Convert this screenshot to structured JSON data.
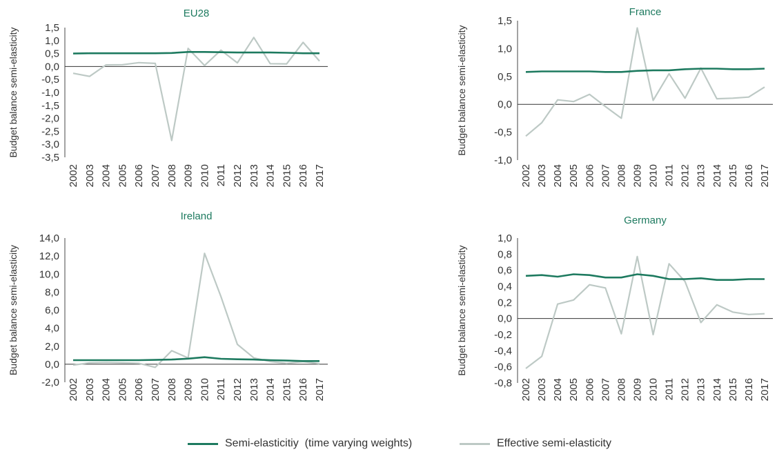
{
  "colors": {
    "series1": "#1d7a5f",
    "series2": "#bdc9c5",
    "title": "#1d7a5f",
    "text": "#333333"
  },
  "legend": {
    "series1": "Semi-elasticitiy  (time varying weights)",
    "series2": "Effective semi-elasticity"
  },
  "chart_data": [
    {
      "type": "line",
      "title": "EU28",
      "ylabel": "Budget balance semi-elasticity",
      "ylim": [
        -3.5,
        1.5
      ],
      "yticks": [
        "1,5",
        "1,0",
        "0,5",
        "0,0",
        "-0,5",
        "-1,0",
        "-1,5",
        "-2,0",
        "-2,5",
        "-3,0",
        "-3,5"
      ],
      "x": [
        "2002",
        "2003",
        "2004",
        "2005",
        "2006",
        "2007",
        "2008",
        "2009",
        "2010",
        "2011",
        "2012",
        "2013",
        "2014",
        "2015",
        "2016",
        "2017"
      ],
      "series": [
        {
          "name": "Semi-elasticitiy  (time varying weights)",
          "values": [
            0.5,
            0.51,
            0.51,
            0.51,
            0.51,
            0.51,
            0.52,
            0.56,
            0.56,
            0.55,
            0.54,
            0.54,
            0.54,
            0.53,
            0.51,
            0.51
          ]
        },
        {
          "name": "Effective semi-elasticity",
          "values": [
            -0.26,
            -0.38,
            0.06,
            0.07,
            0.15,
            0.12,
            -2.85,
            0.7,
            0.04,
            0.63,
            0.14,
            1.12,
            0.11,
            0.1,
            0.93,
            0.21
          ]
        }
      ]
    },
    {
      "type": "line",
      "title": "France",
      "ylabel": "Budget balance semi-elasticity",
      "ylim": [
        -1.0,
        1.5
      ],
      "yticks": [
        "1,5",
        "1,0",
        "0,5",
        "0,0",
        "-0,5",
        "-1,0"
      ],
      "x": [
        "2002",
        "2003",
        "2004",
        "2005",
        "2006",
        "2007",
        "2008",
        "2009",
        "2010",
        "2011",
        "2012",
        "2013",
        "2014",
        "2015",
        "2016",
        "2017"
      ],
      "series": [
        {
          "name": "Semi-elasticitiy  (time varying weights)",
          "values": [
            0.58,
            0.59,
            0.59,
            0.59,
            0.59,
            0.58,
            0.58,
            0.6,
            0.61,
            0.61,
            0.63,
            0.64,
            0.64,
            0.63,
            0.63,
            0.64
          ]
        },
        {
          "name": "Effective semi-elasticity",
          "values": [
            -0.57,
            -0.33,
            0.08,
            0.05,
            0.18,
            -0.04,
            -0.25,
            1.37,
            0.07,
            0.55,
            0.11,
            0.65,
            0.1,
            0.11,
            0.13,
            0.31
          ]
        }
      ]
    },
    {
      "type": "line",
      "title": "Ireland",
      "ylabel": "Budget balance semi-elasticity",
      "ylim": [
        -2.0,
        14.0
      ],
      "yticks": [
        "14,0",
        "12,0",
        "10,0",
        "8,0",
        "6,0",
        "4,0",
        "2,0",
        "0,0",
        "-2,0"
      ],
      "x": [
        "2002",
        "2003",
        "2004",
        "2005",
        "2006",
        "2007",
        "2008",
        "2009",
        "2010",
        "2011",
        "2012",
        "2013",
        "2014",
        "2015",
        "2016",
        "2017"
      ],
      "series": [
        {
          "name": "Semi-elasticitiy  (time varying weights)",
          "values": [
            0.45,
            0.45,
            0.45,
            0.45,
            0.45,
            0.48,
            0.52,
            0.62,
            0.78,
            0.6,
            0.55,
            0.52,
            0.45,
            0.4,
            0.35,
            0.35
          ]
        },
        {
          "name": "Effective semi-elasticity",
          "values": [
            -0.1,
            0.15,
            0.2,
            0.15,
            0.1,
            -0.35,
            1.5,
            0.7,
            12.3,
            7.5,
            2.2,
            0.7,
            0.3,
            0.1,
            0.3,
            0.05
          ]
        }
      ]
    },
    {
      "type": "line",
      "title": "Germany",
      "ylabel": "Budget balance semi-elasticity",
      "ylim": [
        -0.8,
        1.0
      ],
      "yticks": [
        "1,0",
        "0,8",
        "0,6",
        "0,4",
        "0,2",
        "0,0",
        "-0,2",
        "-0,4",
        "-0,6",
        "-0,8"
      ],
      "x": [
        "2002",
        "2003",
        "2004",
        "2005",
        "2006",
        "2007",
        "2008",
        "2009",
        "2010",
        "2011",
        "2012",
        "2013",
        "2014",
        "2015",
        "2016",
        "2017"
      ],
      "series": [
        {
          "name": "Semi-elasticitiy  (time varying weights)",
          "values": [
            0.53,
            0.54,
            0.52,
            0.55,
            0.54,
            0.51,
            0.51,
            0.55,
            0.53,
            0.49,
            0.49,
            0.5,
            0.48,
            0.48,
            0.49,
            0.49
          ]
        },
        {
          "name": "Effective semi-elasticity",
          "values": [
            -0.62,
            -0.47,
            0.18,
            0.23,
            0.42,
            0.38,
            -0.19,
            0.77,
            -0.2,
            0.68,
            0.46,
            -0.05,
            0.17,
            0.08,
            0.05,
            0.06
          ]
        }
      ]
    }
  ]
}
